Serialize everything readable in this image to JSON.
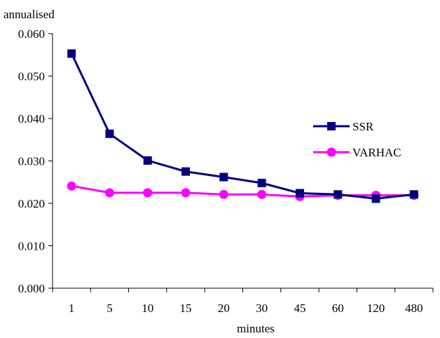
{
  "chart_data": {
    "type": "line",
    "ylabel": "annualised",
    "xlabel": "minutes",
    "categories": [
      "1",
      "5",
      "10",
      "15",
      "20",
      "30",
      "45",
      "60",
      "120",
      "480"
    ],
    "ylim": [
      0.0,
      0.06
    ],
    "yticks": [
      "0.000",
      "0.010",
      "0.020",
      "0.030",
      "0.040",
      "0.050",
      "0.060"
    ],
    "ytick_values": [
      0.0,
      0.01,
      0.02,
      0.03,
      0.04,
      0.05,
      0.06
    ],
    "grid": false,
    "legend_position": "right",
    "series": [
      {
        "name": "SSR",
        "color": "#000080",
        "marker": "square",
        "values": [
          0.0553,
          0.0364,
          0.0301,
          0.0275,
          0.0262,
          0.0248,
          0.0224,
          0.0221,
          0.0211,
          0.0221
        ]
      },
      {
        "name": "VARHAC",
        "color": "#ff00ff",
        "marker": "circle",
        "values": [
          0.0241,
          0.0225,
          0.0225,
          0.0225,
          0.0221,
          0.0221,
          0.0216,
          0.0219,
          0.0219,
          0.0219
        ]
      }
    ]
  }
}
